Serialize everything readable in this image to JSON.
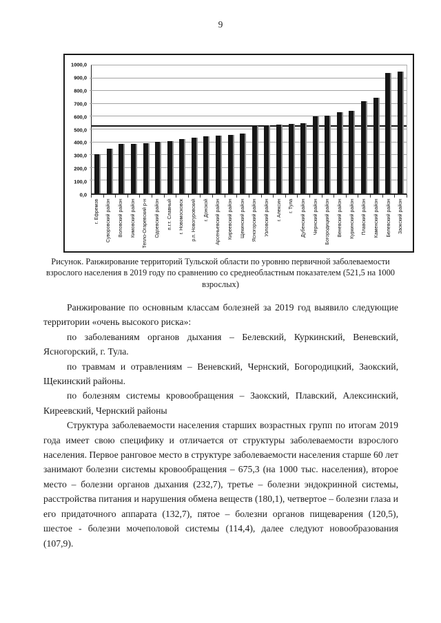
{
  "page": {
    "number": "9"
  },
  "figure": {
    "caption": "Рисунок. Ранжирование территорий Тульской области по уровню первичной заболеваемости взрослого населения в 2019 году по сравнению со среднеобластным показателем (521,5 на 1000 взрослых)"
  },
  "chart_data": {
    "type": "bar",
    "title": "",
    "xlabel": "",
    "ylabel": "",
    "ylim": [
      0,
      1000
    ],
    "ytick_step": 100,
    "yticks": [
      "0,0",
      "100,0",
      "200,0",
      "300,0",
      "400,0",
      "500,0",
      "600,0",
      "700,0",
      "800,0",
      "900,0",
      "1000,0"
    ],
    "grid": true,
    "legend": false,
    "bar_color": "#161616",
    "gridline_color": "#a2a2a2",
    "reference_line_value": 521.5,
    "categories": [
      "г. Ефремов",
      "Суворовский район",
      "Воловский район",
      "Кимовский район",
      "Тепло-Огаревский р-н",
      "Одоевский район",
      "п.г.т. Славный",
      "г. Новомосковск",
      "р.п. Новогуровский",
      "г. Донской",
      "Арсеньевский район",
      "Киреевский район",
      "Щекинский район",
      "Ясногорский район",
      "Узловский район",
      "г. Алексин",
      "г. Тула",
      "Дубенский район",
      "Чернский район",
      "Богородицкий район",
      "Веневский район",
      "Куркинский район",
      "Плавский район",
      "Каменский район",
      "Белевский район",
      "Заокский район"
    ],
    "values": [
      305,
      352,
      386,
      388,
      390,
      405,
      411,
      424,
      435,
      448,
      450,
      458,
      468,
      526,
      533,
      540,
      545,
      551,
      600,
      610,
      635,
      646,
      721,
      748,
      940,
      950
    ]
  },
  "paragraphs": [
    "Ранжирование по основным классам болезней за 2019 год выявило следующие территории «очень высокого риска»:",
    "по заболеваниям органов дыхания – Белевский, Куркинский, Веневский, Ясногорский, г. Тула.",
    "по травмам и отравлениям – Веневский, Чернский, Богородицкий, Заокский, Щекинский районы.",
    "по болезням системы кровообращения – Заокский, Плавский, Алексинский, Киреевский, Чернский районы",
    "Структура заболеваемости населения старших возрастных групп по итогам 2019 года имеет свою специфику и отличается от структуры заболеваемости взрослого населения. Первое ранговое место в структуре заболеваемости населения старше 60 лет занимают болезни системы кровообращения – 675,3 (на 1000 тыс. населения), второе место – болезни органов дыхания (232,7), третье – болезни эндокринной системы, расстройства питания и нарушения обмена веществ (180,1), четвертое – болезни глаза и его придаточного аппарата (132,7), пятое – болезни органов пищеварения (120,5), шестое - болезни мочеполовой системы (114,4), далее следуют новообразования (107,9)."
  ]
}
